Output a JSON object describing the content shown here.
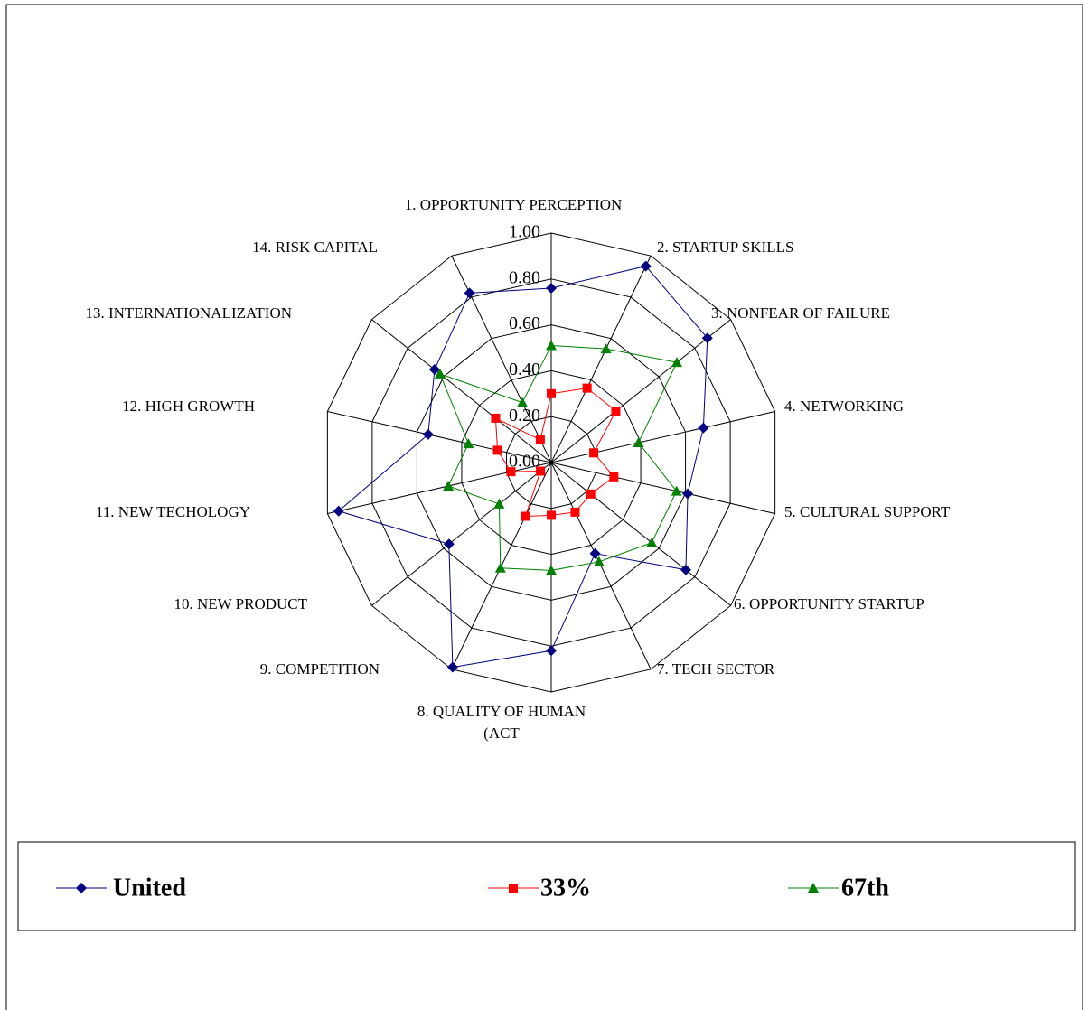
{
  "chart_data": {
    "type": "radar",
    "categories": [
      "1. OPPORTUNITY PERCEPTION",
      "2. STARTUP SKILLS",
      "3. NONFEAR OF FAILURE",
      "4. NETWORKING",
      "5. CULTURAL SUPPORT",
      "6. OPPORTUNITY STARTUP",
      "7. TECH SECTOR",
      "8. QUALITY OF HUMAN (ACT",
      "9. COMPETITION",
      "10. NEW PRODUCT",
      "11. NEW TECHOLOGY",
      "12. HIGH GROWTH",
      "13. INTERNATIONALIZATION",
      "14. RISK CAPITAL"
    ],
    "series": [
      {
        "name": "United",
        "color": "#000080",
        "marker": "diamond",
        "values": [
          0.76,
          0.95,
          0.87,
          0.68,
          0.61,
          0.75,
          0.44,
          0.82,
          0.99,
          0.57,
          0.95,
          0.55,
          0.65,
          0.82
        ]
      },
      {
        "name": "33%",
        "color": "#ff0000",
        "marker": "square",
        "values": [
          0.3,
          0.36,
          0.36,
          0.19,
          0.28,
          0.22,
          0.24,
          0.23,
          0.26,
          0.06,
          0.18,
          0.24,
          0.31,
          0.11
        ]
      },
      {
        "name": "67th",
        "color": "#008000",
        "marker": "triangle",
        "values": [
          0.51,
          0.55,
          0.7,
          0.39,
          0.56,
          0.56,
          0.48,
          0.47,
          0.51,
          0.29,
          0.46,
          0.37,
          0.62,
          0.29
        ]
      }
    ],
    "ylim": [
      0,
      1
    ],
    "yticks": [
      {
        "value": 0,
        "label": "0.00"
      },
      {
        "value": 0.2,
        "label": "0.20"
      },
      {
        "value": 0.4,
        "label": "0.40"
      },
      {
        "value": 0.6,
        "label": "0.60"
      },
      {
        "value": 0.8,
        "label": "0.80"
      },
      {
        "value": 1,
        "label": "1.00"
      }
    ],
    "grid": true
  }
}
